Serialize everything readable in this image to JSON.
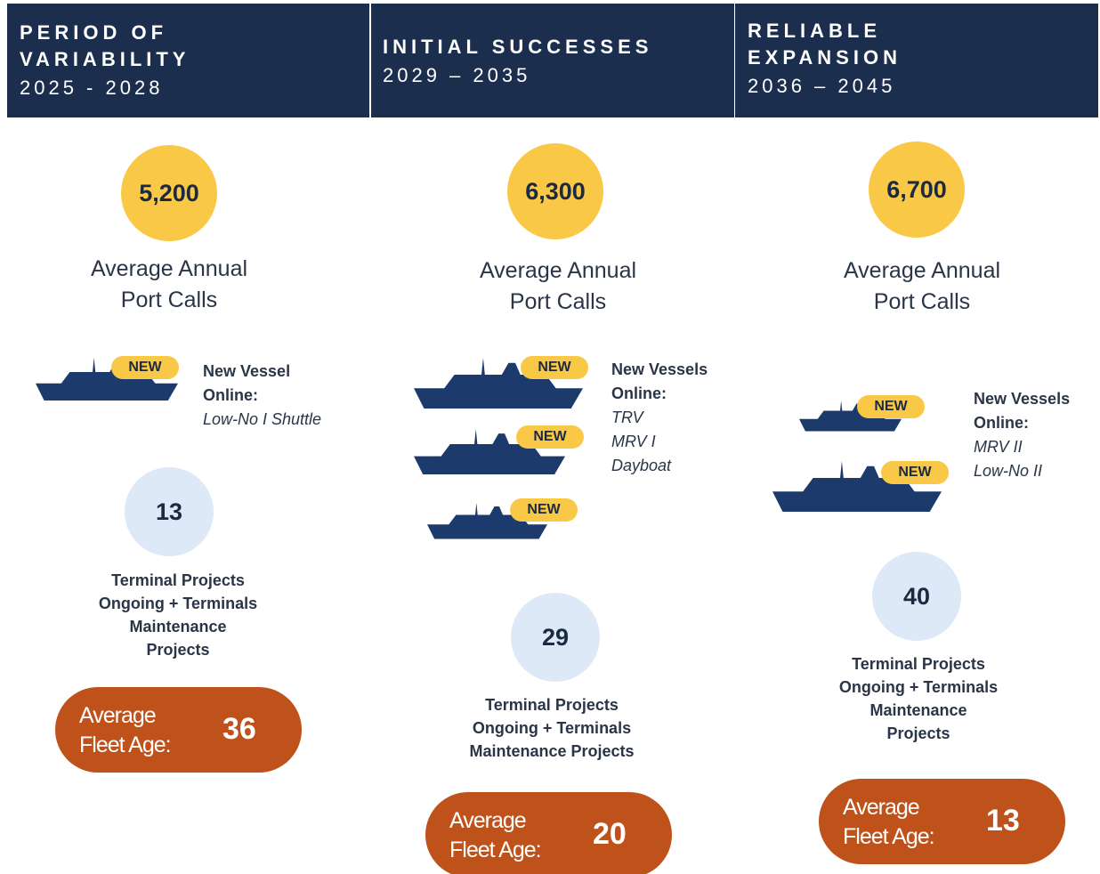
{
  "columns": [
    {
      "header": {
        "title_lines": [
          "PERIOD OF",
          "VARIABILITY"
        ],
        "years": "2025 - 2028"
      },
      "port_calls": {
        "value": "5,200",
        "label_lines": [
          "Average Annual",
          "Port Calls"
        ]
      },
      "vessels": {
        "heading_lines": [
          "New Vessel",
          "Online:"
        ],
        "names": [
          "Low-No I Shuttle"
        ],
        "ships": [
          {
            "badge": "NEW"
          }
        ]
      },
      "projects": {
        "value": "13",
        "label_lines": [
          "Terminal Projects",
          "Ongoing + Terminals",
          "Maintenance",
          "Projects"
        ]
      },
      "fleet_age": {
        "label_lines": [
          "Average",
          "Fleet Age:"
        ],
        "value": "36"
      }
    },
    {
      "header": {
        "title_lines": [
          "INITIAL SUCCESSES"
        ],
        "years": "2029 – 2035"
      },
      "port_calls": {
        "value": "6,300",
        "label_lines": [
          "Average Annual",
          "Port Calls"
        ]
      },
      "vessels": {
        "heading_lines": [
          "New Vessels",
          "Online:"
        ],
        "names": [
          "TRV",
          "MRV I",
          "Dayboat"
        ],
        "ships": [
          {
            "badge": "NEW"
          },
          {
            "badge": "NEW"
          },
          {
            "badge": "NEW"
          }
        ]
      },
      "projects": {
        "value": "29",
        "label_lines": [
          "Terminal Projects",
          "Ongoing + Terminals",
          "Maintenance Projects"
        ]
      },
      "fleet_age": {
        "label_lines": [
          "Average",
          "Fleet Age:"
        ],
        "value": "20"
      }
    },
    {
      "header": {
        "title_lines": [
          "RELIABLE",
          "EXPANSION"
        ],
        "years": "2036 – 2045"
      },
      "port_calls": {
        "value": "6,700",
        "label_lines": [
          "Average Annual",
          "Port Calls"
        ]
      },
      "vessels": {
        "heading_lines": [
          "New Vessels",
          "Online:"
        ],
        "names": [
          "MRV II",
          "Low-No II"
        ],
        "ships": [
          {
            "badge": "NEW"
          },
          {
            "badge": "NEW"
          }
        ]
      },
      "projects": {
        "value": "40",
        "label_lines": [
          "Terminal Projects",
          "Ongoing + Terminals",
          "Maintenance",
          "Projects"
        ]
      },
      "fleet_age": {
        "label_lines": [
          "Average",
          "Fleet Age:"
        ],
        "value": "13"
      }
    }
  ]
}
